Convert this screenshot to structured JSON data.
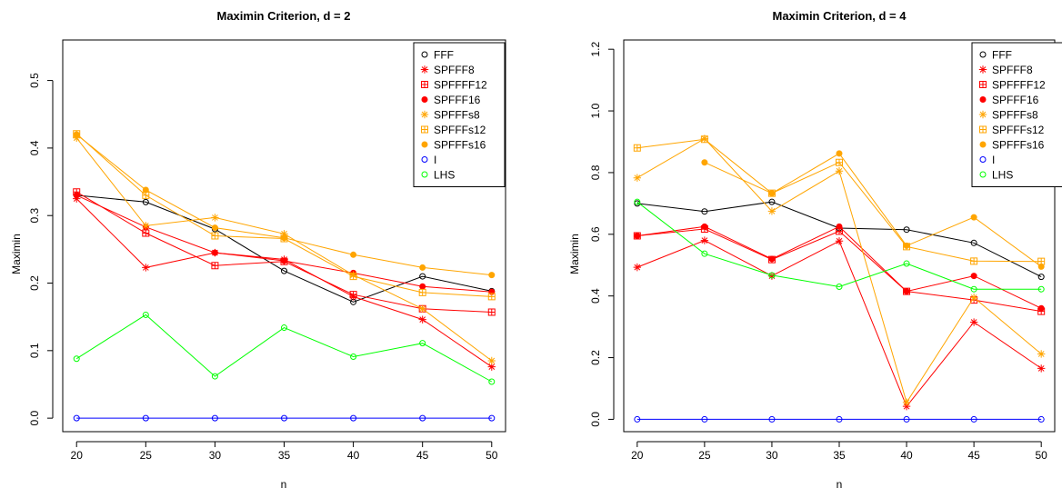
{
  "chart_data": [
    {
      "type": "line",
      "title": "Maximin Criterion, d = 2",
      "xlabel": "n",
      "ylabel": "Maximin",
      "x": [
        20,
        25,
        30,
        35,
        40,
        45,
        50
      ],
      "xticks": [
        "20",
        "25",
        "30",
        "35",
        "40",
        "45",
        "50"
      ],
      "yticks": [
        "0.0",
        "0.1",
        "0.2",
        "0.3",
        "0.4",
        "0.5"
      ],
      "xlim": [
        19,
        51
      ],
      "ylim": [
        -0.02,
        0.56
      ],
      "grid": false,
      "legend": "top-right",
      "series": [
        {
          "name": "FFF",
          "color": "#000000",
          "marker": "circle-open",
          "values": [
            0.33,
            0.32,
            0.28,
            0.218,
            0.172,
            0.21,
            0.188
          ]
        },
        {
          "name": "SPFFF8",
          "color": "#ff0000",
          "marker": "asterisk",
          "values": [
            0.325,
            0.223,
            0.245,
            0.235,
            0.18,
            0.146,
            0.076
          ]
        },
        {
          "name": "SPFFFF12",
          "color": "#ff0000",
          "marker": "square-plus",
          "values": [
            0.335,
            0.274,
            0.226,
            0.232,
            0.183,
            0.162,
            0.157
          ]
        },
        {
          "name": "SPFFF16",
          "color": "#ff0000",
          "marker": "dot",
          "values": [
            0.33,
            0.283,
            0.245,
            0.233,
            0.215,
            0.195,
            0.187
          ]
        },
        {
          "name": "SPFFFs8",
          "color": "#ffa500",
          "marker": "asterisk",
          "values": [
            0.415,
            0.285,
            0.297,
            0.273,
            0.212,
            0.162,
            0.085
          ]
        },
        {
          "name": "SPFFFs12",
          "color": "#ffa500",
          "marker": "square-plus",
          "values": [
            0.421,
            0.33,
            0.27,
            0.266,
            0.21,
            0.186,
            0.18
          ]
        },
        {
          "name": "SPFFFs16",
          "color": "#ffa500",
          "marker": "dot",
          "values": [
            0.42,
            0.338,
            0.282,
            0.267,
            0.242,
            0.223,
            0.212
          ]
        },
        {
          "name": "I",
          "color": "#0000ff",
          "marker": "circle-open",
          "values": [
            0.0,
            0.0,
            0.0,
            0.0,
            0.0,
            0.0,
            0.0
          ]
        },
        {
          "name": "LHS",
          "color": "#00ff00",
          "marker": "circle-open",
          "values": [
            0.088,
            0.153,
            0.062,
            0.134,
            0.091,
            0.111,
            0.054
          ]
        }
      ]
    },
    {
      "type": "line",
      "title": "Maximin Criterion, d = 4",
      "xlabel": "n",
      "ylabel": "Maximin",
      "x": [
        20,
        25,
        30,
        35,
        40,
        45,
        50
      ],
      "xticks": [
        "20",
        "25",
        "30",
        "35",
        "40",
        "45",
        "50"
      ],
      "yticks": [
        "0.0",
        "0.2",
        "0.4",
        "0.6",
        "0.8",
        "1.0",
        "1.2"
      ],
      "xlim": [
        19,
        51
      ],
      "ylim": [
        -0.04,
        1.23
      ],
      "grid": false,
      "legend": "top-right",
      "series": [
        {
          "name": "FFF",
          "color": "#000000",
          "marker": "circle-open",
          "values": [
            0.7,
            0.674,
            0.705,
            0.62,
            0.615,
            0.572,
            0.462
          ]
        },
        {
          "name": "SPFFF8",
          "color": "#ff0000",
          "marker": "asterisk",
          "values": [
            0.493,
            0.58,
            0.465,
            0.578,
            0.042,
            0.315,
            0.165
          ]
        },
        {
          "name": "SPFFFF12",
          "color": "#ff0000",
          "marker": "square-plus",
          "values": [
            0.595,
            0.617,
            0.518,
            0.61,
            0.415,
            0.387,
            0.35
          ]
        },
        {
          "name": "SPFFF16",
          "color": "#ff0000",
          "marker": "dot",
          "values": [
            0.595,
            0.625,
            0.52,
            0.625,
            0.415,
            0.465,
            0.36
          ]
        },
        {
          "name": "SPFFFs8",
          "color": "#ffa500",
          "marker": "asterisk",
          "values": [
            0.783,
            0.91,
            0.675,
            0.805,
            0.055,
            0.395,
            0.212
          ]
        },
        {
          "name": "SPFFFs12",
          "color": "#ffa500",
          "marker": "square-plus",
          "values": [
            0.88,
            0.908,
            0.733,
            0.833,
            0.56,
            0.513,
            0.512
          ]
        },
        {
          "name": "SPFFFs16",
          "color": "#ffa500",
          "marker": "dot",
          "values": [
            null,
            0.833,
            0.733,
            0.862,
            0.563,
            0.655,
            0.495
          ]
        },
        {
          "name": "I",
          "color": "#0000ff",
          "marker": "circle-open",
          "values": [
            0.0,
            0.0,
            0.0,
            0.0,
            0.0,
            0.0,
            0.0
          ]
        },
        {
          "name": "LHS",
          "color": "#00ff00",
          "marker": "circle-open",
          "values": [
            0.705,
            0.537,
            0.467,
            0.43,
            0.505,
            0.422,
            0.422
          ]
        }
      ]
    }
  ]
}
